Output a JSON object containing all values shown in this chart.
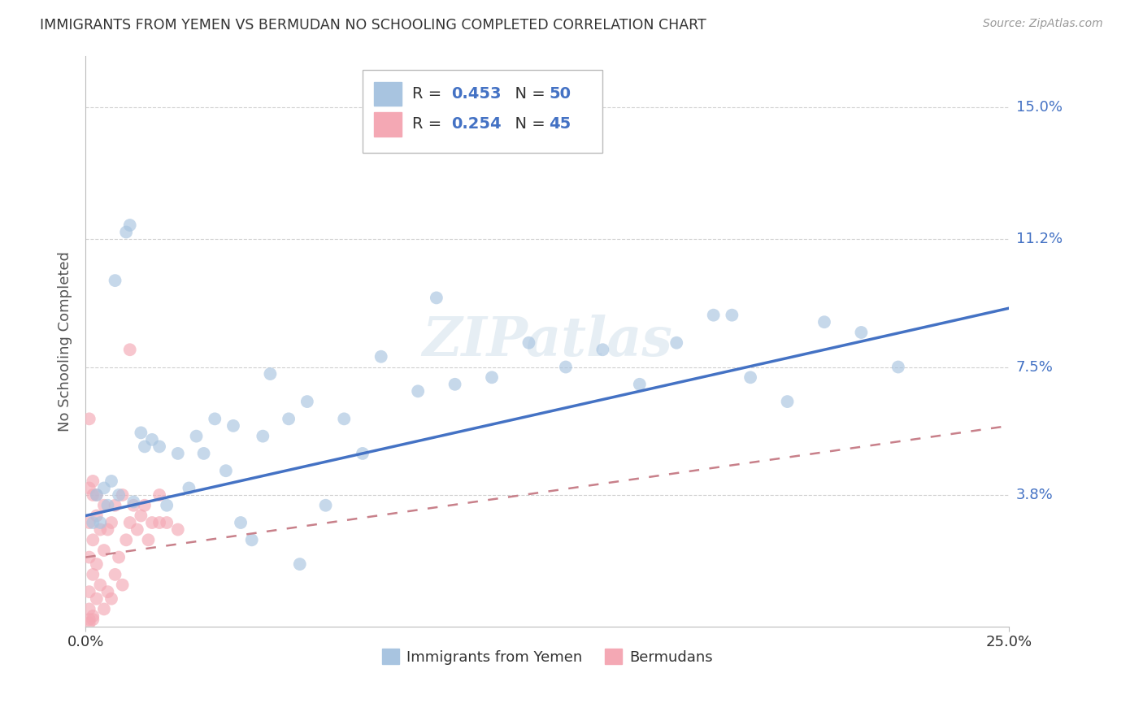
{
  "title": "IMMIGRANTS FROM YEMEN VS BERMUDAN NO SCHOOLING COMPLETED CORRELATION CHART",
  "source": "Source: ZipAtlas.com",
  "ylabel": "No Schooling Completed",
  "ytick_labels": [
    "15.0%",
    "11.2%",
    "7.5%",
    "3.8%"
  ],
  "ytick_values": [
    0.15,
    0.112,
    0.075,
    0.038
  ],
  "xlim": [
    0.0,
    0.25
  ],
  "ylim": [
    0.0,
    0.165
  ],
  "blue_scatter_color": "#a8c4e0",
  "pink_scatter_color": "#f4a8b4",
  "blue_line_color": "#4472c4",
  "pink_line_color": "#c8808a",
  "blue_line": {
    "x0": 0.0,
    "x1": 0.25,
    "y0": 0.032,
    "y1": 0.092
  },
  "pink_line": {
    "x0": 0.0,
    "x1": 0.25,
    "y0": 0.02,
    "y1": 0.058
  },
  "watermark": "ZIPatlas",
  "bg_color": "#ffffff",
  "grid_color": "#d0d0d0",
  "title_color": "#333333",
  "axis_label_color": "#555555",
  "legend_R_color": "#4472c4",
  "legend_N_color": "#4472c4",
  "blue_x": [
    0.003,
    0.005,
    0.007,
    0.009,
    0.011,
    0.012,
    0.013,
    0.008,
    0.006,
    0.004,
    0.015,
    0.018,
    0.02,
    0.025,
    0.03,
    0.035,
    0.04,
    0.022,
    0.028,
    0.032,
    0.038,
    0.042,
    0.048,
    0.055,
    0.06,
    0.065,
    0.07,
    0.075,
    0.08,
    0.09,
    0.1,
    0.11,
    0.12,
    0.13,
    0.14,
    0.15,
    0.16,
    0.17,
    0.18,
    0.19,
    0.2,
    0.21,
    0.22,
    0.002,
    0.016,
    0.05,
    0.045,
    0.058,
    0.095,
    0.175
  ],
  "blue_y": [
    0.038,
    0.04,
    0.042,
    0.038,
    0.114,
    0.116,
    0.036,
    0.1,
    0.035,
    0.03,
    0.056,
    0.054,
    0.052,
    0.05,
    0.055,
    0.06,
    0.058,
    0.035,
    0.04,
    0.05,
    0.045,
    0.03,
    0.055,
    0.06,
    0.065,
    0.035,
    0.06,
    0.05,
    0.078,
    0.068,
    0.07,
    0.072,
    0.082,
    0.075,
    0.08,
    0.07,
    0.082,
    0.09,
    0.072,
    0.065,
    0.088,
    0.085,
    0.075,
    0.03,
    0.052,
    0.073,
    0.025,
    0.018,
    0.095,
    0.09
  ],
  "pink_x": [
    0.001,
    0.001,
    0.001,
    0.001,
    0.001,
    0.002,
    0.002,
    0.002,
    0.002,
    0.003,
    0.003,
    0.003,
    0.004,
    0.004,
    0.005,
    0.005,
    0.005,
    0.006,
    0.006,
    0.007,
    0.007,
    0.008,
    0.008,
    0.009,
    0.01,
    0.01,
    0.011,
    0.012,
    0.013,
    0.014,
    0.015,
    0.016,
    0.017,
    0.018,
    0.02,
    0.022,
    0.025,
    0.001,
    0.002,
    0.003,
    0.001,
    0.001,
    0.002,
    0.012,
    0.02
  ],
  "pink_y": [
    0.002,
    0.005,
    0.01,
    0.02,
    0.03,
    0.003,
    0.015,
    0.025,
    0.038,
    0.008,
    0.018,
    0.032,
    0.012,
    0.028,
    0.005,
    0.022,
    0.035,
    0.01,
    0.028,
    0.008,
    0.03,
    0.015,
    0.035,
    0.02,
    0.012,
    0.038,
    0.025,
    0.03,
    0.035,
    0.028,
    0.032,
    0.035,
    0.025,
    0.03,
    0.038,
    0.03,
    0.028,
    0.04,
    0.042,
    0.038,
    0.06,
    0.001,
    0.002,
    0.08,
    0.03
  ]
}
